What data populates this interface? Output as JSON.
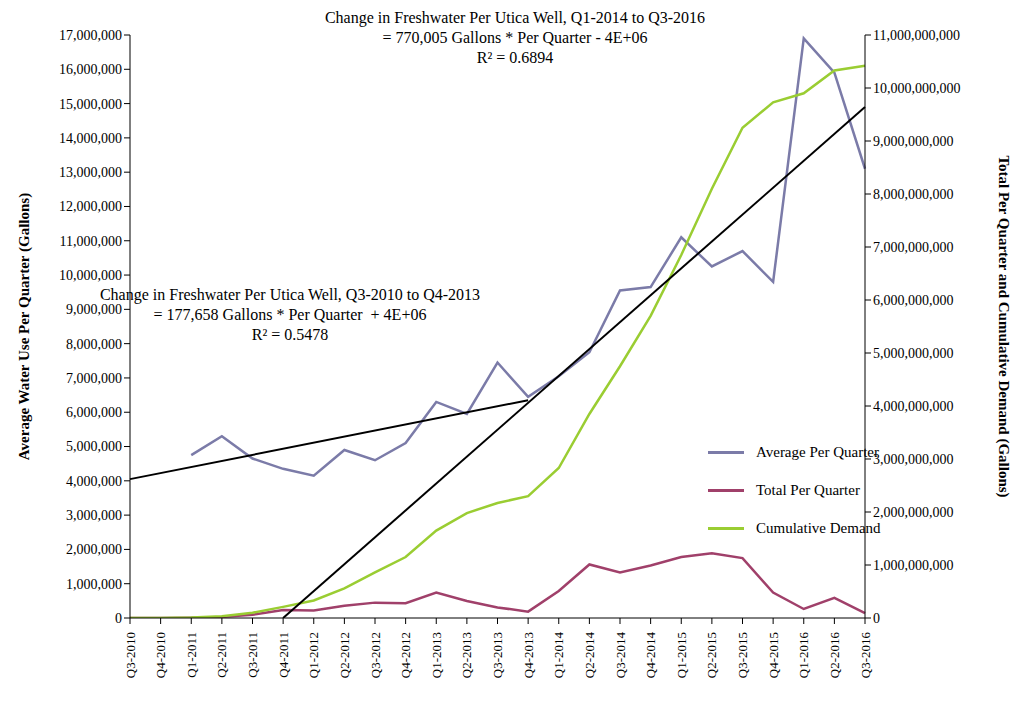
{
  "chart_data": {
    "type": "line",
    "y_label": "Average Water Use Per Quarter (Gallons)",
    "y2_label": "Total Per Quarter and Cumulative Demand (Gallons)",
    "categories": [
      "Q3-2010",
      "Q4-2010",
      "Q1-2011",
      "Q2-2011",
      "Q3-2011",
      "Q4-2011",
      "Q1-2012",
      "Q2-2012",
      "Q3-2012",
      "Q4-2012",
      "Q1-2013",
      "Q2-2013",
      "Q3-2013",
      "Q4-2013",
      "Q1-2014",
      "Q2-2014",
      "Q3-2014",
      "Q4-2014",
      "Q1-2015",
      "Q2-2015",
      "Q3-2015",
      "Q4-2015",
      "Q1-2016",
      "Q2-2016",
      "Q3-2016"
    ],
    "series": [
      {
        "name": "Average Per Quarter",
        "color": "#7b7ba8",
        "values": [
          null,
          null,
          4750000,
          5300000,
          4650000,
          4350000,
          4150000,
          4900000,
          4600000,
          5100000,
          6300000,
          5950000,
          7450000,
          6450000,
          7050000,
          7750000,
          9550000,
          9650000,
          11100000,
          10250000,
          10700000,
          9800000,
          16900000,
          15900000,
          13100000
        ]
      },
      {
        "name": "Total Per Quarter",
        "color": "#a0406a",
        "axis": "y2",
        "values": [
          0,
          0,
          5000000,
          20000000,
          60000000,
          150000000,
          140000000,
          230000000,
          290000000,
          280000000,
          480000000,
          320000000,
          200000000,
          120000000,
          510000000,
          1010000000,
          860000000,
          990000000,
          1150000000,
          1220000000,
          1130000000,
          480000000,
          170000000,
          380000000,
          90000000
        ]
      },
      {
        "name": "Cumulative Demand",
        "color": "#9acd32",
        "axis": "y2",
        "values": [
          0,
          0,
          10000000,
          35000000,
          100000000,
          210000000,
          330000000,
          560000000,
          860000000,
          1150000000,
          1650000000,
          1980000000,
          2170000000,
          2300000000,
          2830000000,
          3850000000,
          4750000000,
          5700000000,
          6850000000,
          8100000000,
          9250000000,
          9730000000,
          9900000000,
          10330000000,
          10420000000
        ]
      }
    ],
    "trendlines": [
      {
        "name": "Change in Freshwater Per Utica Well, Q3-2010 to Q4-2013",
        "equation": "= 177,658 Gallons * Per Quarter  + 4E+06",
        "r_squared": "R² = 0.5478",
        "color": "#000000",
        "values": [
          4050000,
          null,
          null,
          null,
          null,
          null,
          null,
          null,
          null,
          null,
          null,
          null,
          null,
          6350000,
          null,
          null,
          null,
          null,
          null,
          null,
          null,
          null,
          null,
          null,
          null
        ]
      },
      {
        "name": "Change in Freshwater Per Utica Well, Q1-2014 to Q3-2016",
        "equation": "= 770,005 Gallons * Per Quarter - 4E+06",
        "r_squared": "R² = 0.6894",
        "color": "#000000",
        "values": [
          null,
          null,
          null,
          null,
          null,
          0,
          null,
          null,
          null,
          null,
          null,
          null,
          null,
          null,
          null,
          null,
          null,
          null,
          null,
          null,
          null,
          null,
          null,
          null,
          14900000
        ]
      }
    ],
    "ylim": [
      0,
      17000000
    ],
    "yticks": [
      0,
      {
        "value": 1000000,
        "label": "1,000,000"
      },
      {
        "value": 2000000,
        "label": "2,000,000"
      },
      {
        "value": 3000000,
        "label": "3,000,000"
      },
      {
        "value": 4000000,
        "label": "4,000,000"
      },
      {
        "value": 5000000,
        "label": "5,000,000"
      },
      {
        "value": 6000000,
        "label": "6,000,000"
      },
      {
        "value": 7000000,
        "label": "7,000,000"
      },
      {
        "value": 8000000,
        "label": "8,000,000"
      },
      {
        "value": 9000000,
        "label": "9,000,000"
      },
      {
        "value": 10000000,
        "label": "10,000,000"
      },
      {
        "value": 11000000,
        "label": "11,000,000"
      },
      {
        "value": 12000000,
        "label": "12,000,000"
      },
      {
        "value": 13000000,
        "label": "13,000,000"
      },
      {
        "value": 14000000,
        "label": "14,000,000"
      },
      {
        "value": 15000000,
        "label": "15,000,000"
      },
      {
        "value": 16000000,
        "label": "16,000,000"
      },
      {
        "value": 17000000,
        "label": "17,000,000"
      }
    ],
    "y2lim": [
      0,
      11000000000
    ],
    "y2ticks": [
      0,
      {
        "value": 1000000000,
        "label": "1,000,000,000"
      },
      {
        "value": 2000000000,
        "label": "2,000,000,000"
      },
      {
        "value": 3000000000,
        "label": "3,000,000,000"
      },
      {
        "value": 4000000000,
        "label": "4,000,000,000"
      },
      {
        "value": 5000000000,
        "label": "5,000,000,000"
      },
      {
        "value": 6000000000,
        "label": "6,000,000,000"
      },
      {
        "value": 7000000000,
        "label": "7,000,000,000"
      },
      {
        "value": 8000000000,
        "label": "8,000,000,000"
      },
      {
        "value": 9000000000,
        "label": "9,000,000,000"
      },
      {
        "value": 10000000000,
        "label": "10,000,000,000"
      },
      {
        "value": 11000000000,
        "label": "11,000,000,000"
      }
    ],
    "legend": "right",
    "grid": false
  }
}
